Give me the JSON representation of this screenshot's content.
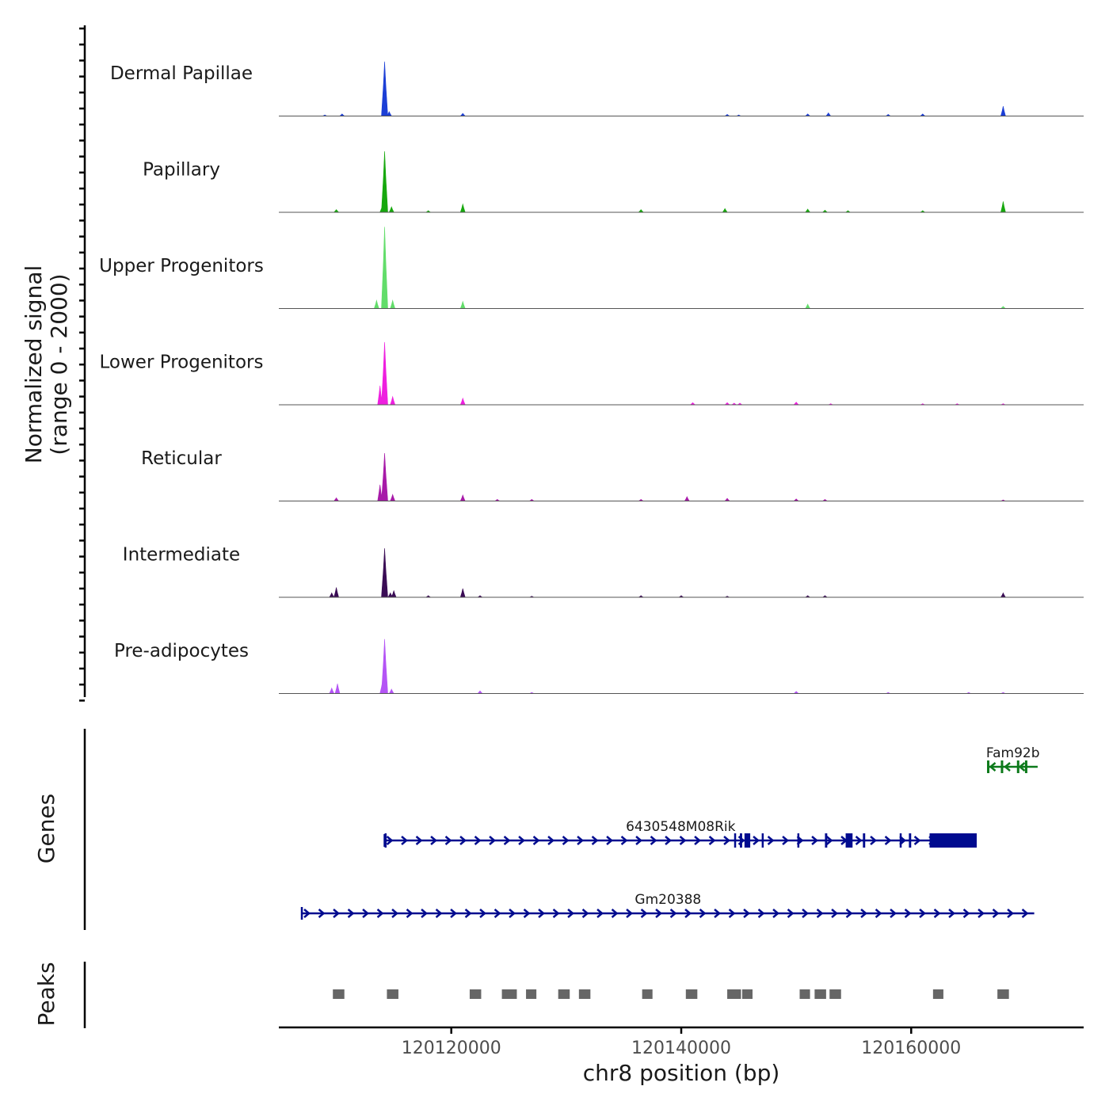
{
  "chart_data": {
    "type": "area",
    "title": "",
    "signal_axis_label_line1": "Normalized signal",
    "signal_axis_label_line2": "(range 0 - 2000)",
    "ylim": [
      0,
      2000
    ],
    "xlabel": "chr8 position (bp)",
    "xlim": [
      120105000,
      120175000
    ],
    "x_ticks": [
      120120000,
      120140000,
      120160000
    ],
    "x_tick_labels": [
      "120120000",
      "120140000",
      "120160000"
    ],
    "tracks": [
      {
        "name": "Dermal Papillae",
        "color": "#1c3fd6",
        "peaks": [
          [
            120109000,
            20
          ],
          [
            120110500,
            40
          ],
          [
            120114200,
            1000
          ],
          [
            120114600,
            80
          ],
          [
            120121000,
            50
          ],
          [
            120144000,
            30
          ],
          [
            120145000,
            20
          ],
          [
            120151000,
            40
          ],
          [
            120152800,
            60
          ],
          [
            120158000,
            30
          ],
          [
            120161000,
            40
          ],
          [
            120168000,
            180
          ]
        ]
      },
      {
        "name": "Papillary",
        "color": "#17a80e",
        "peaks": [
          [
            120110000,
            50
          ],
          [
            120114000,
            120
          ],
          [
            120114200,
            1120
          ],
          [
            120114800,
            100
          ],
          [
            120118000,
            30
          ],
          [
            120121000,
            150
          ],
          [
            120136500,
            50
          ],
          [
            120143800,
            70
          ],
          [
            120151000,
            60
          ],
          [
            120152500,
            40
          ],
          [
            120154500,
            30
          ],
          [
            120161000,
            30
          ],
          [
            120168000,
            200
          ]
        ]
      },
      {
        "name": "Upper Progenitors",
        "color": "#62dd6a",
        "peaks": [
          [
            120113500,
            150
          ],
          [
            120114200,
            1500
          ],
          [
            120114900,
            150
          ],
          [
            120121000,
            130
          ],
          [
            120151000,
            80
          ],
          [
            120168000,
            40
          ]
        ]
      },
      {
        "name": "Lower Progenitors",
        "color": "#ee1fdf",
        "peaks": [
          [
            120113800,
            350
          ],
          [
            120114200,
            1150
          ],
          [
            120114900,
            150
          ],
          [
            120121000,
            120
          ],
          [
            120141000,
            40
          ],
          [
            120144000,
            40
          ],
          [
            120144600,
            30
          ],
          [
            120145100,
            30
          ],
          [
            120150000,
            50
          ],
          [
            120153000,
            20
          ],
          [
            120161000,
            20
          ],
          [
            120164000,
            20
          ],
          [
            120168000,
            20
          ]
        ]
      },
      {
        "name": "Reticular",
        "color": "#a71aa8",
        "peaks": [
          [
            120110000,
            60
          ],
          [
            120113800,
            300
          ],
          [
            120114200,
            880
          ],
          [
            120114900,
            120
          ],
          [
            120121000,
            110
          ],
          [
            120124000,
            30
          ],
          [
            120127000,
            30
          ],
          [
            120136500,
            30
          ],
          [
            120140500,
            80
          ],
          [
            120144000,
            50
          ],
          [
            120150000,
            40
          ],
          [
            120152500,
            30
          ],
          [
            120168000,
            20
          ]
        ]
      },
      {
        "name": "Intermediate",
        "color": "#3a0c55",
        "peaks": [
          [
            120109600,
            80
          ],
          [
            120110000,
            180
          ],
          [
            120114200,
            900
          ],
          [
            120114700,
            80
          ],
          [
            120115000,
            120
          ],
          [
            120118000,
            30
          ],
          [
            120121000,
            160
          ],
          [
            120122500,
            30
          ],
          [
            120127000,
            20
          ],
          [
            120136500,
            30
          ],
          [
            120140000,
            30
          ],
          [
            120144000,
            20
          ],
          [
            120151000,
            30
          ],
          [
            120152500,
            30
          ],
          [
            120168000,
            80
          ]
        ]
      },
      {
        "name": "Pre-adipocytes",
        "color": "#b454f5",
        "peaks": [
          [
            120109600,
            100
          ],
          [
            120110100,
            180
          ],
          [
            120114000,
            200
          ],
          [
            120114200,
            1000
          ],
          [
            120114800,
            80
          ],
          [
            120122500,
            50
          ],
          [
            120127000,
            20
          ],
          [
            120150000,
            40
          ],
          [
            120158000,
            20
          ],
          [
            120165000,
            20
          ],
          [
            120168000,
            20
          ]
        ]
      }
    ],
    "genes_label": "Genes",
    "genes": [
      {
        "name": "Fam92b",
        "color": "#0d7a1b",
        "strand": "-",
        "start": 120166700,
        "end": 120171000
      },
      {
        "name": "6430548M08Rik",
        "color": "#000b8f",
        "strand": "+",
        "start": 120114200,
        "end": 120165700,
        "exons": [
          [
            120114200,
            120114300
          ],
          [
            120144600,
            120144700
          ],
          [
            120145100,
            120145300
          ],
          [
            120145500,
            120146000
          ],
          [
            120147000,
            120147100
          ],
          [
            120150100,
            120150250
          ],
          [
            120152500,
            120152700
          ],
          [
            120154300,
            120154900
          ],
          [
            120155800,
            120156000
          ],
          [
            120159000,
            120159100
          ],
          [
            120159800,
            120160000
          ],
          [
            120161600,
            120165700
          ]
        ]
      },
      {
        "name": "Gm20388",
        "color": "#000b8f",
        "strand": "+",
        "start": 120107000,
        "end": 120170700
      }
    ],
    "peaks_label": "Peaks",
    "peak_color": "#666666",
    "peak_regions": [
      [
        120109700,
        120110700
      ],
      [
        120114400,
        120115400
      ],
      [
        120121600,
        120122600
      ],
      [
        120124400,
        120125700
      ],
      [
        120126500,
        120127400
      ],
      [
        120129300,
        120130300
      ],
      [
        120131100,
        120132100
      ],
      [
        120136600,
        120137500
      ],
      [
        120140400,
        120141400
      ],
      [
        120144000,
        120145200
      ],
      [
        120145300,
        120146200
      ],
      [
        120150300,
        120151200
      ],
      [
        120151600,
        120152600
      ],
      [
        120152900,
        120153900
      ],
      [
        120161900,
        120162800
      ],
      [
        120167500,
        120168500
      ]
    ]
  }
}
